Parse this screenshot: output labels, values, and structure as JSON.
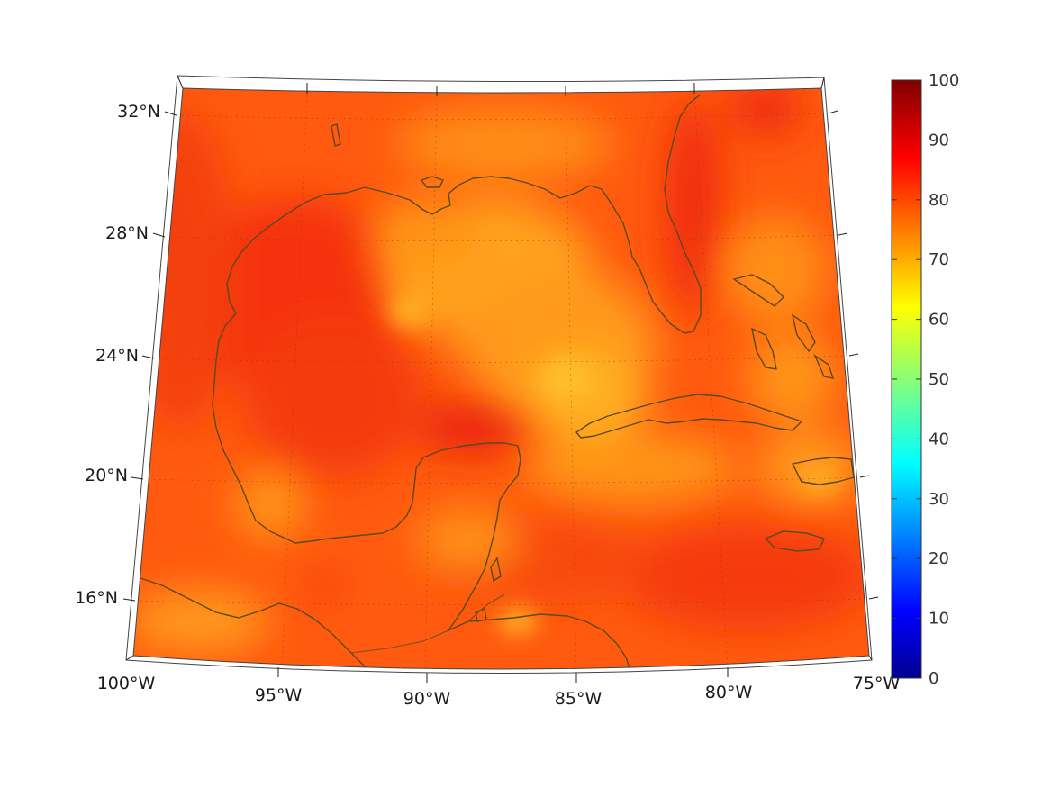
{
  "map": {
    "lon_labels": [
      "100°W",
      "95°W",
      "90°W",
      "85°W",
      "80°W",
      "75°W"
    ],
    "lat_labels": [
      "32°N",
      "28°N",
      "24°N",
      "20°N",
      "16°N"
    ],
    "extent": {
      "lon_min": -100,
      "lon_max": -75,
      "lat_min": 14,
      "lat_max": 33
    }
  },
  "colorbar": {
    "colormap": "jet",
    "range": [
      0,
      100
    ],
    "tick_labels": [
      "100",
      "90",
      "80",
      "70",
      "60",
      "50",
      "40",
      "30",
      "20",
      "10",
      "0"
    ]
  },
  "colors": {
    "field_base": "#ff5a0f",
    "field_high": "#f5300c",
    "field_low": "#ffa81c",
    "coastline": "#5a4a1c"
  }
}
